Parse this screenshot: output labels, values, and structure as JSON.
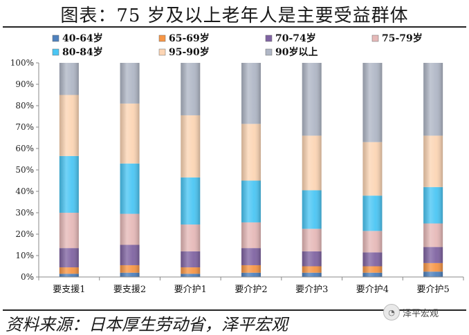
{
  "title": "图表：75 岁及以上老年人是主要受益群体",
  "source": "资料来源：日本厚生劳动省，泽平宏观",
  "watermark": {
    "text": "泽平宏观",
    "icon": "wechat-official-account-icon"
  },
  "chart_data": {
    "type": "stacked-bar-100",
    "categories": [
      "要支援1",
      "要支援2",
      "要介护1",
      "要介护2",
      "要介护3",
      "要介护4",
      "要介护5"
    ],
    "series": [
      {
        "name": "40-64岁",
        "color": "#4f81bd",
        "values": [
          1.5,
          2.0,
          1.5,
          2.0,
          2.0,
          2.0,
          2.5
        ]
      },
      {
        "name": "65-69岁",
        "color": "#f79646",
        "values": [
          3.0,
          3.5,
          3.0,
          3.5,
          3.0,
          3.0,
          4.0
        ]
      },
      {
        "name": "70-74岁",
        "color": "#8064a2",
        "values": [
          9.0,
          9.5,
          7.5,
          8.0,
          7.0,
          6.5,
          7.5
        ]
      },
      {
        "name": "75-79岁",
        "color": "#e6b9b8",
        "values": [
          16.5,
          14.5,
          12.5,
          12.0,
          10.5,
          10.0,
          11.0
        ]
      },
      {
        "name": "80-84岁",
        "color": "#4bc6f4",
        "values": [
          26.5,
          23.5,
          22.0,
          19.5,
          18.0,
          16.5,
          17.0
        ]
      },
      {
        "name": "95-90岁",
        "color": "#fcd5b4",
        "values": [
          28.5,
          28.0,
          29.0,
          26.5,
          25.5,
          25.0,
          24.0
        ]
      },
      {
        "name": "90岁以上",
        "color": "#b0b7c6",
        "values": [
          15.0,
          19.0,
          24.5,
          28.5,
          34.0,
          37.0,
          34.0
        ]
      }
    ],
    "y_ticks": [
      "0%",
      "10%",
      "20%",
      "30%",
      "40%",
      "50%",
      "60%",
      "70%",
      "80%",
      "90%",
      "100%"
    ],
    "ylim": [
      0,
      100
    ],
    "legend_position": "top",
    "grid": false
  }
}
